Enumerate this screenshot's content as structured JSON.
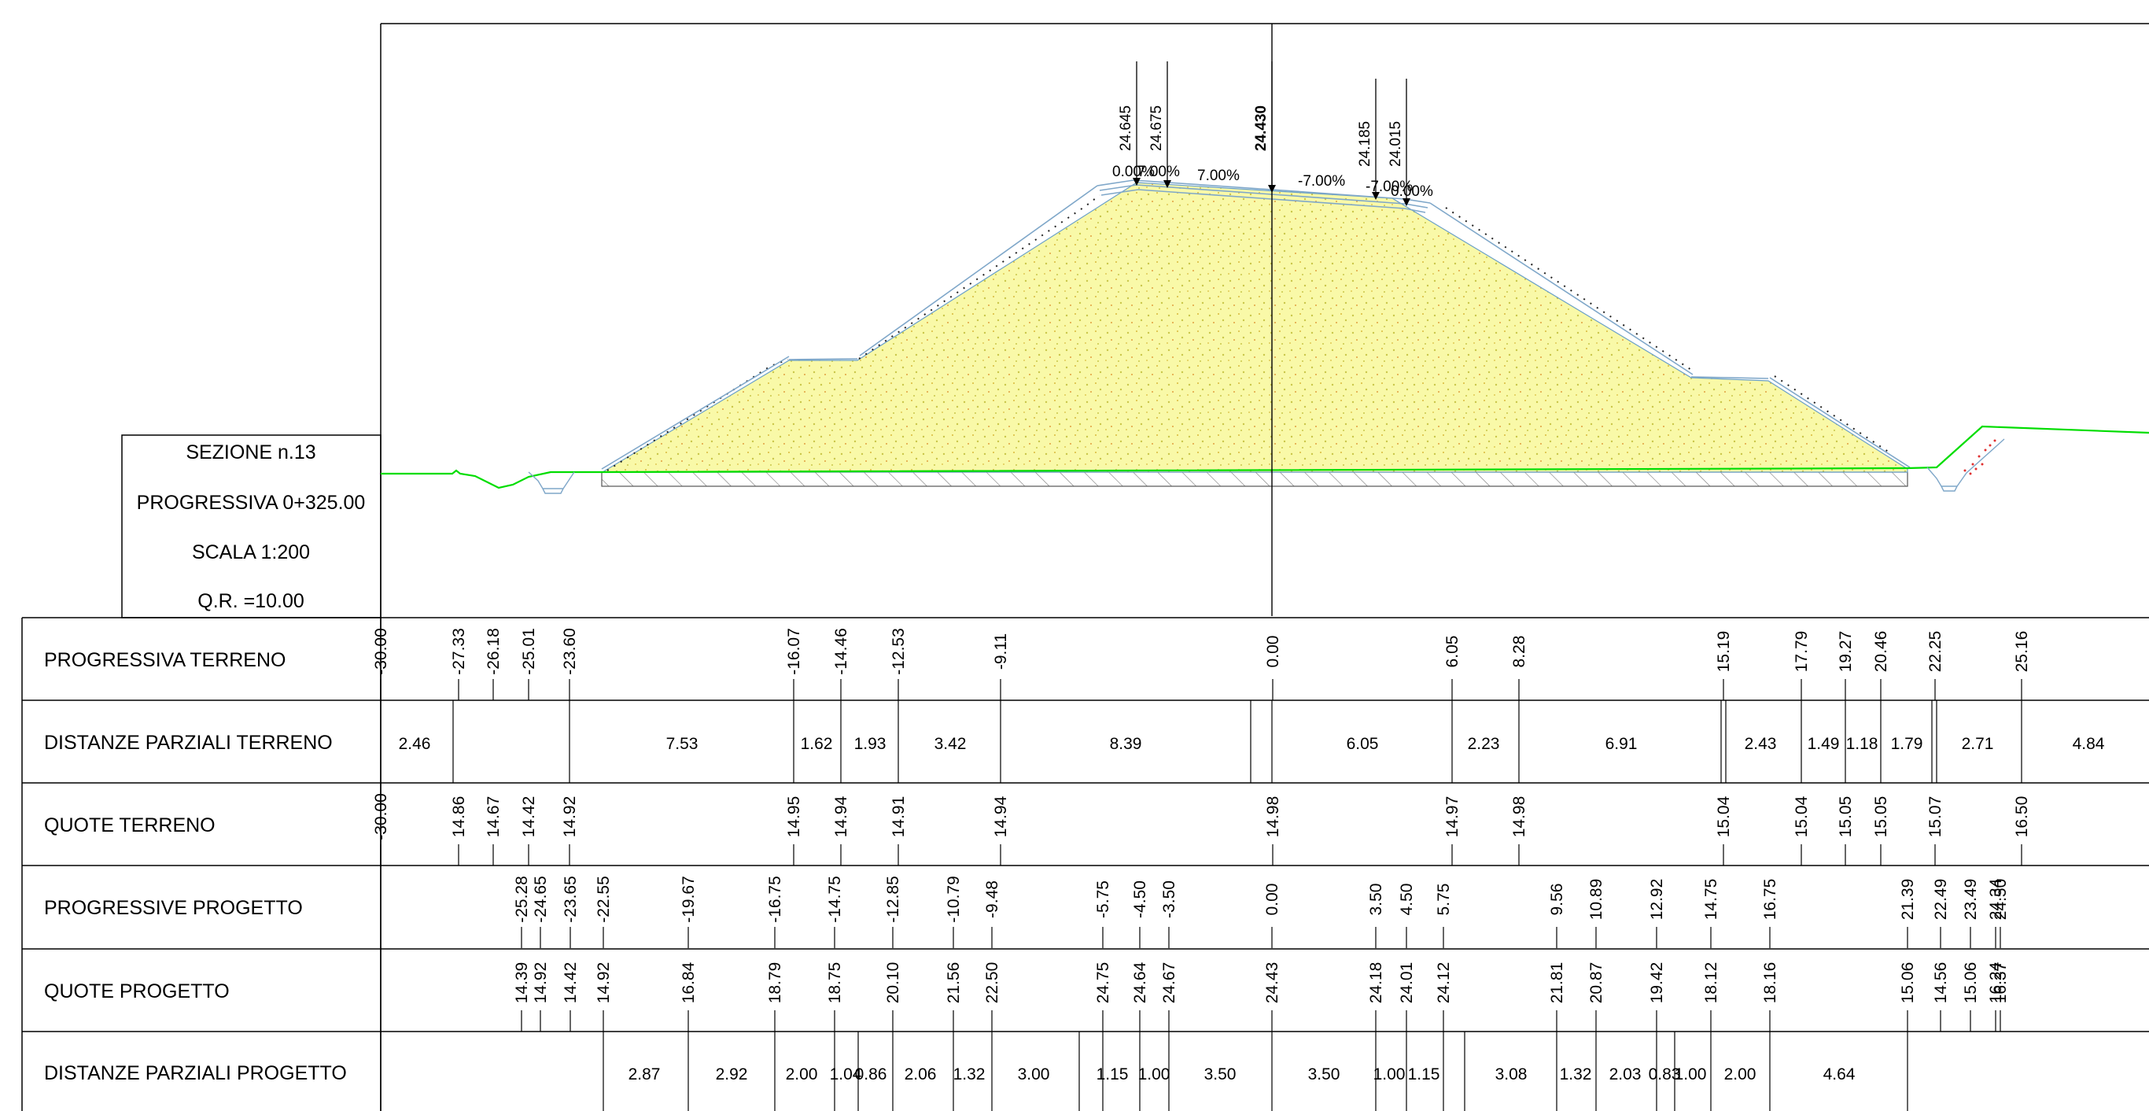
{
  "info_box": {
    "section": "SEZIONE  n.13",
    "progressive": "PROGRESSIVA 0+325.00",
    "scale": "SCALA 1:200",
    "reference": "Q.R. =10.00"
  },
  "rows": {
    "progressiva_terreno": {
      "label": "PROGRESSIVA TERRENO",
      "values": [
        "-30.00",
        "-27.33",
        "-26.18",
        "-25.01",
        "-23.60",
        "-16.07",
        "-14.46",
        "-12.53",
        "-9.11",
        "0.00",
        "6.05",
        "8.28",
        "15.19",
        "17.79",
        "19.27",
        "20.46",
        "22.25",
        "25.16"
      ]
    },
    "distanze_parziali_terreno": {
      "label": "DISTANZE PARZIALI TERRENO",
      "values": [
        "2.46",
        "7.53",
        "1.62",
        "1.93",
        "3.42",
        "8.39",
        "6.05",
        "2.23",
        "6.91",
        "2.43",
        "1.49",
        "1.18",
        "1.79",
        "2.71",
        "4.84"
      ]
    },
    "quote_terreno": {
      "label": "QUOTE TERRENO",
      "values": [
        "-30.00",
        "14.86",
        "14.67",
        "14.42",
        "14.92",
        "14.95",
        "14.94",
        "14.91",
        "14.94",
        "14.98",
        "14.97",
        "14.98",
        "15.04",
        "15.04",
        "15.05",
        "15.05",
        "15.07",
        "16.50"
      ]
    },
    "progressive_progetto": {
      "label": "PROGRESSIVE PROGETTO",
      "values": [
        "-25.28",
        "-24.65",
        "-23.65",
        "-22.55",
        "-19.67",
        "-16.75",
        "-14.75",
        "-12.85",
        "-10.79",
        "-9.48",
        "-5.75",
        "-4.50",
        "-3.50",
        "0.00",
        "3.50",
        "4.50",
        "5.75",
        "9.56",
        "10.89",
        "12.92",
        "14.75",
        "16.75",
        "21.39",
        "22.49",
        "23.49",
        "24.34",
        "24.50"
      ]
    },
    "quote_progetto": {
      "label": "QUOTE PROGETTO",
      "values": [
        "14.39",
        "14.92",
        "14.42",
        "14.92",
        "16.84",
        "18.79",
        "18.75",
        "20.10",
        "21.56",
        "22.50",
        "24.75",
        "24.64",
        "24.67",
        "24.43",
        "24.18",
        "24.01",
        "24.12",
        "21.81",
        "20.87",
        "19.42",
        "18.12",
        "18.16",
        "15.06",
        "14.56",
        "15.06",
        "16.24",
        "16.37"
      ]
    },
    "distanze_parziali_progetto": {
      "label": "DISTANZE PARZIALI PROGETTO",
      "values": [
        "2.87",
        "2.92",
        "2.00",
        "1.04",
        "0.86",
        "2.06",
        "1.32",
        "3.00",
        "1.15",
        "1.00",
        "3.50",
        "3.50",
        "1.00",
        "1.15",
        "3.08",
        "1.32",
        "2.03",
        "0.83",
        "1.00",
        "2.00",
        "4.64"
      ]
    }
  },
  "section_drawing": {
    "elevations": [
      "24.645",
      "24.675",
      "24.430",
      "24.185",
      "24.015"
    ],
    "slopes": [
      "0.00%",
      "7.00%",
      "7.00%",
      "-7.00%",
      "-7.00%",
      "0.00%"
    ]
  },
  "colors": {
    "embankment_fill": "#f7f79a",
    "ground_line": "#00dd00",
    "pavement_layers": "#7fa7c9",
    "line": "#000000"
  }
}
